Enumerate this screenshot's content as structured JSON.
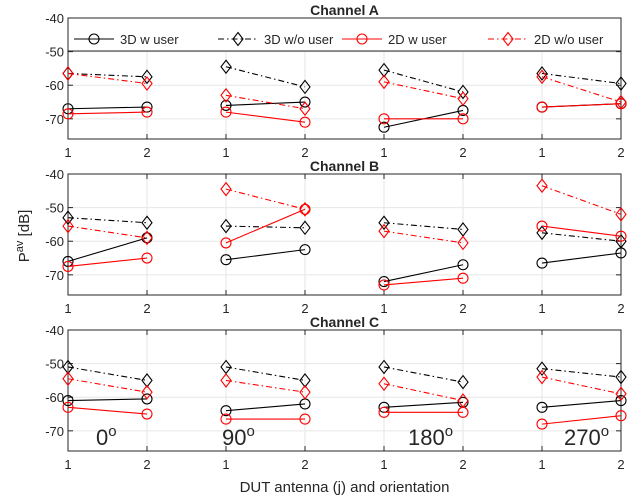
{
  "chart_data": [
    {
      "type": "line",
      "title": "Channel A",
      "x_tick_labels": [
        "1",
        "2",
        "1",
        "2",
        "1",
        "2",
        "1",
        "2"
      ],
      "ylim": [
        -76,
        -40
      ],
      "yticks": [
        -70,
        -60,
        -50,
        -40
      ],
      "grid": true,
      "legend": "top, horizontal",
      "series": [
        {
          "name": "3D w user",
          "color": "#000000",
          "marker": "circle",
          "dash": "solid",
          "groups": [
            [
              -67,
              -66.5
            ],
            [
              -66,
              -65
            ],
            [
              -72.5,
              -67.5
            ],
            [
              -66.5,
              -65.5
            ]
          ]
        },
        {
          "name": "3D w/o user",
          "color": "#000000",
          "marker": "diamond",
          "dash": "dashdot",
          "groups": [
            [
              -56.5,
              -57.5
            ],
            [
              -54.5,
              -60.5
            ],
            [
              -55.5,
              -62
            ],
            [
              -56.5,
              -59.5
            ]
          ]
        },
        {
          "name": "2D w user",
          "color": "#ff0000",
          "marker": "circle",
          "dash": "solid",
          "groups": [
            [
              -68.5,
              -68
            ],
            [
              -68,
              -71
            ],
            [
              -70,
              -70
            ],
            [
              -66.5,
              -65.5
            ]
          ]
        },
        {
          "name": "2D w/o user",
          "color": "#ff0000",
          "marker": "diamond",
          "dash": "dashdot",
          "groups": [
            [
              -56.5,
              -59.5
            ],
            [
              -63,
              -67
            ],
            [
              -59,
              -64
            ],
            [
              -57.5,
              -65
            ]
          ]
        }
      ]
    },
    {
      "type": "line",
      "title": "Channel B",
      "x_tick_labels": [
        "1",
        "2",
        "1",
        "2",
        "1",
        "2",
        "1",
        "2"
      ],
      "ylim": [
        -76,
        -40
      ],
      "yticks": [
        -70,
        -60,
        -50,
        -40
      ],
      "grid": true,
      "series": [
        {
          "name": "3D w user",
          "color": "#000000",
          "marker": "circle",
          "dash": "solid",
          "groups": [
            [
              -66,
              -59
            ],
            [
              -65.5,
              -62.5
            ],
            [
              -72,
              -67
            ],
            [
              -66.5,
              -63.5
            ]
          ]
        },
        {
          "name": "3D w/o user",
          "color": "#000000",
          "marker": "diamond",
          "dash": "dashdot",
          "groups": [
            [
              -53,
              -54.5
            ],
            [
              -55.5,
              -56
            ],
            [
              -54.5,
              -56.5
            ],
            [
              -57.5,
              -60
            ]
          ]
        },
        {
          "name": "2D w user",
          "color": "#ff0000",
          "marker": "circle",
          "dash": "solid",
          "groups": [
            [
              -67.5,
              -65
            ],
            [
              -60.5,
              -50.5
            ],
            [
              -73,
              -71
            ],
            [
              -55.5,
              -58.5
            ]
          ]
        },
        {
          "name": "2D w/o user",
          "color": "#ff0000",
          "marker": "diamond",
          "dash": "dashdot",
          "groups": [
            [
              -55.5,
              -59
            ],
            [
              -44.5,
              -50.5
            ],
            [
              -57,
              -60.5
            ],
            [
              -43.5,
              -52
            ]
          ]
        }
      ]
    },
    {
      "type": "line",
      "title": "Channel C",
      "x_tick_labels": [
        "1",
        "2",
        "1",
        "2",
        "1",
        "2",
        "1",
        "2"
      ],
      "ylim": [
        -76,
        -40
      ],
      "yticks": [
        -70,
        -60,
        -50,
        -40
      ],
      "grid": true,
      "annotations": [
        {
          "base": "0",
          "sup": "o"
        },
        {
          "base": "90",
          "sup": "o"
        },
        {
          "base": "180",
          "sup": "o"
        },
        {
          "base": "270",
          "sup": "o"
        }
      ],
      "series": [
        {
          "name": "3D w user",
          "color": "#000000",
          "marker": "circle",
          "dash": "solid",
          "groups": [
            [
              -61,
              -60.5
            ],
            [
              -64,
              -62
            ],
            [
              -63,
              -61.5
            ],
            [
              -63,
              -61
            ]
          ]
        },
        {
          "name": "3D w/o user",
          "color": "#000000",
          "marker": "diamond",
          "dash": "dashdot",
          "groups": [
            [
              -51,
              -55
            ],
            [
              -51,
              -55
            ],
            [
              -51,
              -55.5
            ],
            [
              -51.5,
              -54
            ]
          ]
        },
        {
          "name": "2D w user",
          "color": "#ff0000",
          "marker": "circle",
          "dash": "solid",
          "groups": [
            [
              -63,
              -65
            ],
            [
              -66.5,
              -66.5
            ],
            [
              -64.5,
              -64.5
            ],
            [
              -68,
              -65.5
            ]
          ]
        },
        {
          "name": "2D w/o user",
          "color": "#ff0000",
          "marker": "diamond",
          "dash": "dashdot",
          "groups": [
            [
              -54.5,
              -58.5
            ],
            [
              -55,
              -58.5
            ],
            [
              -56,
              -61
            ],
            [
              -54,
              -59
            ]
          ]
        }
      ]
    }
  ],
  "ylabel": {
    "base": "P",
    "sup": "av",
    "unit": " [dB]"
  },
  "xlabel": "DUT antenna (j) and orientation"
}
